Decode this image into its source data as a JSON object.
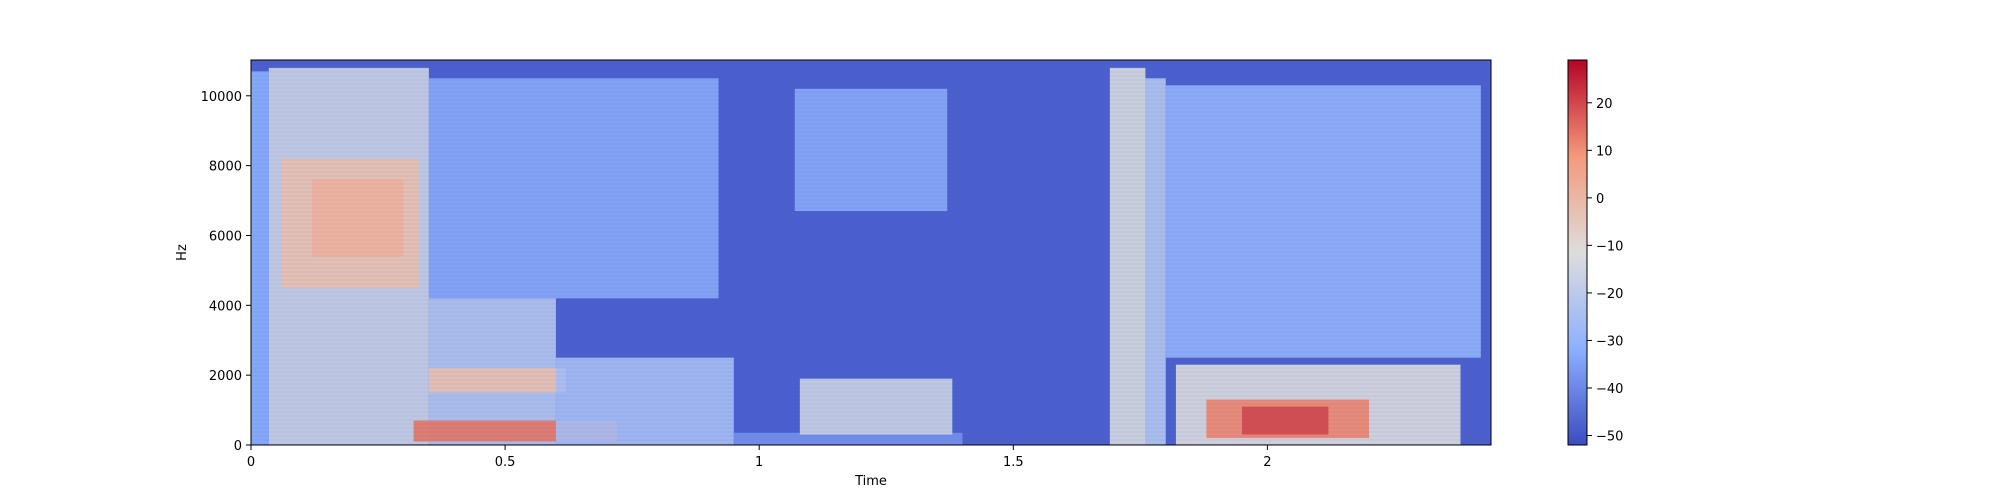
{
  "chart_data": {
    "type": "heatmap",
    "kind": "spectrogram",
    "colormap": "coolwarm",
    "xlabel": "Time",
    "ylabel": "Hz",
    "xlim": [
      0,
      2.44
    ],
    "ylim": [
      0,
      11025
    ],
    "x_ticks": [
      0,
      0.5,
      1,
      1.5,
      2
    ],
    "x_tick_labels": [
      "0",
      "0.5",
      "1",
      "1.5",
      "2"
    ],
    "y_ticks": [
      0,
      2000,
      4000,
      6000,
      8000,
      10000
    ],
    "y_tick_labels": [
      "0",
      "2000",
      "4000",
      "6000",
      "8000",
      "10000"
    ],
    "colorbar": {
      "range": [
        -52,
        29
      ],
      "ticks": [
        -50,
        -40,
        -30,
        -20,
        -10,
        0,
        10,
        20
      ],
      "tick_labels": [
        "−50",
        "−40",
        "−30",
        "−20",
        "−10",
        "0",
        "10",
        "20"
      ]
    },
    "regions_db": [
      {
        "t": [
          0,
          0.035
        ],
        "f": [
          0,
          10700
        ],
        "db": -32
      },
      {
        "t": [
          0.035,
          0.35
        ],
        "f": [
          0,
          10800
        ],
        "db": -16
      },
      {
        "t": [
          0.06,
          0.33
        ],
        "f": [
          4500,
          8200
        ],
        "db": -2
      },
      {
        "t": [
          0.12,
          0.3
        ],
        "f": [
          5400,
          7600
        ],
        "db": 2
      },
      {
        "t": [
          0.35,
          0.92
        ],
        "f": [
          4200,
          10500
        ],
        "db": -33
      },
      {
        "t": [
          0.35,
          0.6
        ],
        "f": [
          0,
          4200
        ],
        "db": -22
      },
      {
        "t": [
          0.35,
          0.62
        ],
        "f": [
          1500,
          2200
        ],
        "db": -2
      },
      {
        "t": [
          0.32,
          0.72
        ],
        "f": [
          100,
          700
        ],
        "db": 14
      },
      {
        "t": [
          0.6,
          0.95
        ],
        "f": [
          0,
          2500
        ],
        "db": -25
      },
      {
        "t": [
          0.95,
          1.4
        ],
        "f": [
          0,
          350
        ],
        "db": -38
      },
      {
        "t": [
          1.08,
          1.38
        ],
        "f": [
          300,
          1900
        ],
        "db": -16
      },
      {
        "t": [
          1.07,
          1.37
        ],
        "f": [
          6700,
          10200
        ],
        "db": -33
      },
      {
        "t": [
          1.69,
          1.76
        ],
        "f": [
          0,
          10800
        ],
        "db": -13
      },
      {
        "t": [
          1.76,
          1.8
        ],
        "f": [
          0,
          10500
        ],
        "db": -22
      },
      {
        "t": [
          1.8,
          2.42
        ],
        "f": [
          2500,
          10300
        ],
        "db": -30
      },
      {
        "t": [
          1.82,
          2.38
        ],
        "f": [
          0,
          2300
        ],
        "db": -12
      },
      {
        "t": [
          1.88,
          2.2
        ],
        "f": [
          200,
          1300
        ],
        "db": 12
      },
      {
        "t": [
          1.95,
          2.12
        ],
        "f": [
          300,
          1100
        ],
        "db": 20
      }
    ]
  }
}
